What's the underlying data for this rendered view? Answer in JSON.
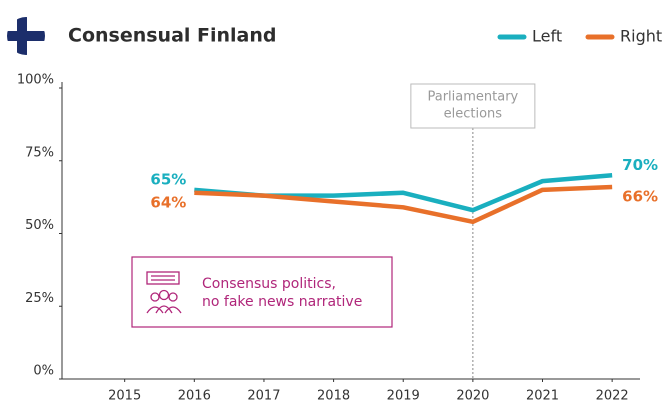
{
  "chart_data": {
    "type": "line",
    "title": "Consensual Finland",
    "x": [
      2015,
      2016,
      2017,
      2018,
      2019,
      2020,
      2021,
      2022
    ],
    "series": [
      {
        "name": "Left",
        "color": "#1aafbf",
        "values": [
          null,
          65,
          63,
          63,
          64,
          58,
          68,
          70
        ],
        "value_labels": [
          null,
          "65%",
          null,
          null,
          null,
          null,
          null,
          "70%"
        ]
      },
      {
        "name": "Right",
        "color": "#e8702a",
        "values": [
          null,
          64,
          63,
          61,
          59,
          54,
          65,
          66
        ],
        "value_labels": [
          null,
          "64%",
          null,
          null,
          null,
          null,
          null,
          "66%"
        ]
      }
    ],
    "xlim": [
      2014.1,
      2022.4
    ],
    "xticks": [
      2015,
      2016,
      2017,
      2018,
      2019,
      2020,
      2021,
      2022
    ],
    "ylim": [
      0,
      100
    ],
    "yticks": [
      {
        "value": 0,
        "label": "0%"
      },
      {
        "value": 25,
        "label": "25%"
      },
      {
        "value": 50,
        "label": "50%"
      },
      {
        "value": 75,
        "label": "75%"
      },
      {
        "value": 100,
        "label": "100%"
      }
    ],
    "annotations": [
      {
        "text": [
          "Parliamentary",
          "elections"
        ],
        "x": 2020
      },
      {
        "text": [
          "Consensus politics,",
          "no fake news narrative"
        ]
      }
    ],
    "legend": "top-right"
  }
}
